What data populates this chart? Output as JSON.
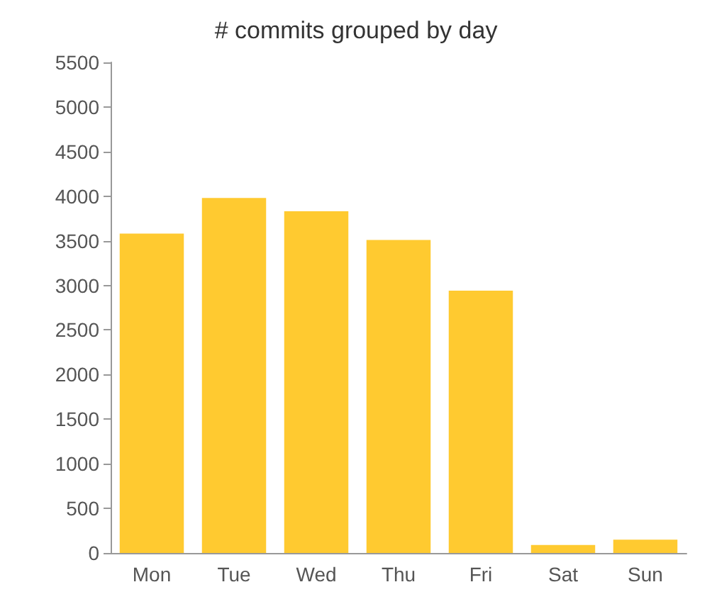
{
  "chart_data": {
    "type": "bar",
    "title": "# commits grouped by day",
    "categories": [
      "Mon",
      "Tue",
      "Wed",
      "Thu",
      "Fri",
      "Sat",
      "Sun"
    ],
    "values": [
      3580,
      3980,
      3830,
      3510,
      2940,
      90,
      150
    ],
    "color": "#ffca30",
    "ylim": [
      0,
      5500
    ],
    "yticks": [
      0,
      500,
      1000,
      1500,
      2000,
      2500,
      3000,
      3500,
      4000,
      4500,
      5000,
      5500
    ],
    "grid": false
  }
}
